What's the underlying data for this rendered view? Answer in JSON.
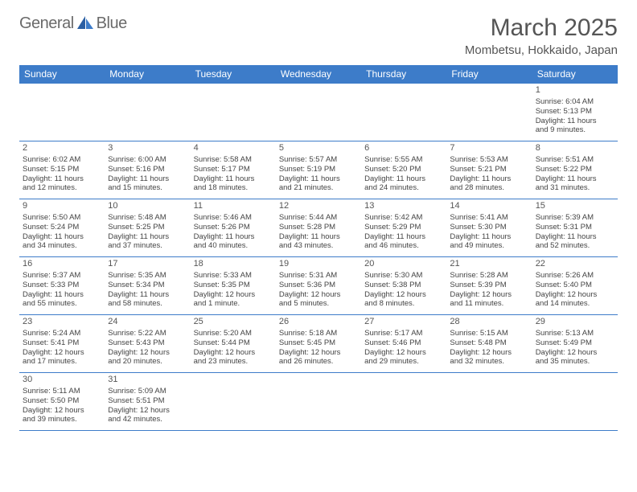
{
  "logo": {
    "text_gray": "General",
    "text_blue": "Blue"
  },
  "title": "March 2025",
  "location": "Mombetsu, Hokkaido, Japan",
  "day_headers": [
    "Sunday",
    "Monday",
    "Tuesday",
    "Wednesday",
    "Thursday",
    "Friday",
    "Saturday"
  ],
  "colors": {
    "header_bg": "#3d7cc9",
    "header_text": "#ffffff",
    "border": "#3d7cc9",
    "title_gray": "#555555",
    "body_text": "#444444"
  },
  "first_weekday": 6,
  "cells": [
    {
      "day": 1,
      "sunrise": "6:04 AM",
      "sunset": "5:13 PM",
      "dl1": "Daylight: 11 hours",
      "dl2": "and 9 minutes."
    },
    {
      "day": 2,
      "sunrise": "6:02 AM",
      "sunset": "5:15 PM",
      "dl1": "Daylight: 11 hours",
      "dl2": "and 12 minutes."
    },
    {
      "day": 3,
      "sunrise": "6:00 AM",
      "sunset": "5:16 PM",
      "dl1": "Daylight: 11 hours",
      "dl2": "and 15 minutes."
    },
    {
      "day": 4,
      "sunrise": "5:58 AM",
      "sunset": "5:17 PM",
      "dl1": "Daylight: 11 hours",
      "dl2": "and 18 minutes."
    },
    {
      "day": 5,
      "sunrise": "5:57 AM",
      "sunset": "5:19 PM",
      "dl1": "Daylight: 11 hours",
      "dl2": "and 21 minutes."
    },
    {
      "day": 6,
      "sunrise": "5:55 AM",
      "sunset": "5:20 PM",
      "dl1": "Daylight: 11 hours",
      "dl2": "and 24 minutes."
    },
    {
      "day": 7,
      "sunrise": "5:53 AM",
      "sunset": "5:21 PM",
      "dl1": "Daylight: 11 hours",
      "dl2": "and 28 minutes."
    },
    {
      "day": 8,
      "sunrise": "5:51 AM",
      "sunset": "5:22 PM",
      "dl1": "Daylight: 11 hours",
      "dl2": "and 31 minutes."
    },
    {
      "day": 9,
      "sunrise": "5:50 AM",
      "sunset": "5:24 PM",
      "dl1": "Daylight: 11 hours",
      "dl2": "and 34 minutes."
    },
    {
      "day": 10,
      "sunrise": "5:48 AM",
      "sunset": "5:25 PM",
      "dl1": "Daylight: 11 hours",
      "dl2": "and 37 minutes."
    },
    {
      "day": 11,
      "sunrise": "5:46 AM",
      "sunset": "5:26 PM",
      "dl1": "Daylight: 11 hours",
      "dl2": "and 40 minutes."
    },
    {
      "day": 12,
      "sunrise": "5:44 AM",
      "sunset": "5:28 PM",
      "dl1": "Daylight: 11 hours",
      "dl2": "and 43 minutes."
    },
    {
      "day": 13,
      "sunrise": "5:42 AM",
      "sunset": "5:29 PM",
      "dl1": "Daylight: 11 hours",
      "dl2": "and 46 minutes."
    },
    {
      "day": 14,
      "sunrise": "5:41 AM",
      "sunset": "5:30 PM",
      "dl1": "Daylight: 11 hours",
      "dl2": "and 49 minutes."
    },
    {
      "day": 15,
      "sunrise": "5:39 AM",
      "sunset": "5:31 PM",
      "dl1": "Daylight: 11 hours",
      "dl2": "and 52 minutes."
    },
    {
      "day": 16,
      "sunrise": "5:37 AM",
      "sunset": "5:33 PM",
      "dl1": "Daylight: 11 hours",
      "dl2": "and 55 minutes."
    },
    {
      "day": 17,
      "sunrise": "5:35 AM",
      "sunset": "5:34 PM",
      "dl1": "Daylight: 11 hours",
      "dl2": "and 58 minutes."
    },
    {
      "day": 18,
      "sunrise": "5:33 AM",
      "sunset": "5:35 PM",
      "dl1": "Daylight: 12 hours",
      "dl2": "and 1 minute."
    },
    {
      "day": 19,
      "sunrise": "5:31 AM",
      "sunset": "5:36 PM",
      "dl1": "Daylight: 12 hours",
      "dl2": "and 5 minutes."
    },
    {
      "day": 20,
      "sunrise": "5:30 AM",
      "sunset": "5:38 PM",
      "dl1": "Daylight: 12 hours",
      "dl2": "and 8 minutes."
    },
    {
      "day": 21,
      "sunrise": "5:28 AM",
      "sunset": "5:39 PM",
      "dl1": "Daylight: 12 hours",
      "dl2": "and 11 minutes."
    },
    {
      "day": 22,
      "sunrise": "5:26 AM",
      "sunset": "5:40 PM",
      "dl1": "Daylight: 12 hours",
      "dl2": "and 14 minutes."
    },
    {
      "day": 23,
      "sunrise": "5:24 AM",
      "sunset": "5:41 PM",
      "dl1": "Daylight: 12 hours",
      "dl2": "and 17 minutes."
    },
    {
      "day": 24,
      "sunrise": "5:22 AM",
      "sunset": "5:43 PM",
      "dl1": "Daylight: 12 hours",
      "dl2": "and 20 minutes."
    },
    {
      "day": 25,
      "sunrise": "5:20 AM",
      "sunset": "5:44 PM",
      "dl1": "Daylight: 12 hours",
      "dl2": "and 23 minutes."
    },
    {
      "day": 26,
      "sunrise": "5:18 AM",
      "sunset": "5:45 PM",
      "dl1": "Daylight: 12 hours",
      "dl2": "and 26 minutes."
    },
    {
      "day": 27,
      "sunrise": "5:17 AM",
      "sunset": "5:46 PM",
      "dl1": "Daylight: 12 hours",
      "dl2": "and 29 minutes."
    },
    {
      "day": 28,
      "sunrise": "5:15 AM",
      "sunset": "5:48 PM",
      "dl1": "Daylight: 12 hours",
      "dl2": "and 32 minutes."
    },
    {
      "day": 29,
      "sunrise": "5:13 AM",
      "sunset": "5:49 PM",
      "dl1": "Daylight: 12 hours",
      "dl2": "and 35 minutes."
    },
    {
      "day": 30,
      "sunrise": "5:11 AM",
      "sunset": "5:50 PM",
      "dl1": "Daylight: 12 hours",
      "dl2": "and 39 minutes."
    },
    {
      "day": 31,
      "sunrise": "5:09 AM",
      "sunset": "5:51 PM",
      "dl1": "Daylight: 12 hours",
      "dl2": "and 42 minutes."
    }
  ],
  "labels": {
    "sunrise_prefix": "Sunrise: ",
    "sunset_prefix": "Sunset: "
  }
}
